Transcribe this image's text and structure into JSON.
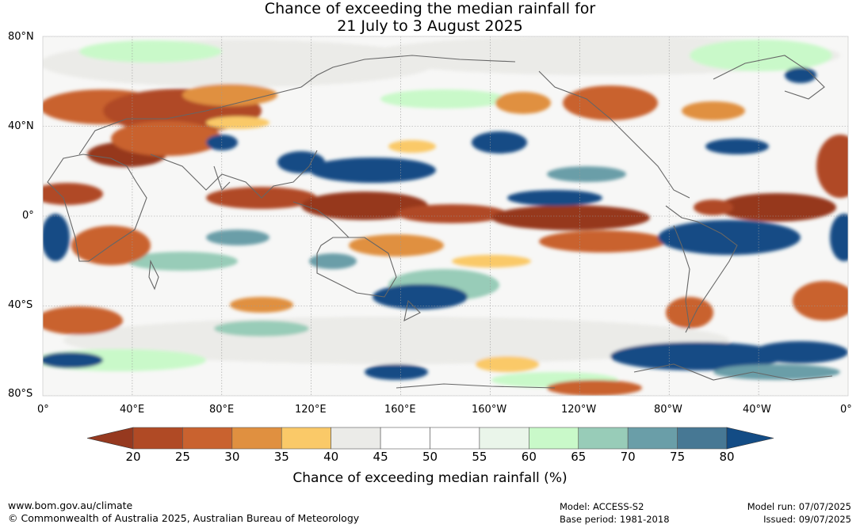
{
  "title": {
    "line1": "Chance of exceeding the median rainfall for",
    "line2": "21 July to 3 August 2025"
  },
  "map": {
    "lat_labels": [
      "80°N",
      "40°N",
      "0°",
      "40°S",
      "80°S"
    ],
    "lon_labels": [
      "0°",
      "40°E",
      "80°E",
      "120°E",
      "160°E",
      "160°W",
      "120°W",
      "80°W",
      "40°W",
      "0°"
    ]
  },
  "colorbar": {
    "ticks": [
      "20",
      "25",
      "30",
      "35",
      "40",
      "45",
      "50",
      "55",
      "60",
      "65",
      "70",
      "75",
      "80"
    ],
    "low_extend_color": "#96391f",
    "high_extend_color": "#134c85",
    "bin_colors": [
      "#b04a25",
      "#c9622f",
      "#e09040",
      "#fac968",
      "#ebebe8",
      "#ffffff",
      "#ffffff",
      "#eaf5ea",
      "#c9f9c9",
      "#98ccb8",
      "#6a9ea8",
      "#477894"
    ],
    "label": "Chance of exceeding median rainfall (%)"
  },
  "footer": {
    "url": "www.bom.gov.au/climate",
    "copyright": "© Commonwealth of Australia 2025, Australian Bureau of Meteorology",
    "model": "Model: ACCESS-S2",
    "base_period": "Base period: 1981-2018",
    "model_run": "Model run: 07/07/2025",
    "issued": "Issued: 09/07/2025"
  }
}
